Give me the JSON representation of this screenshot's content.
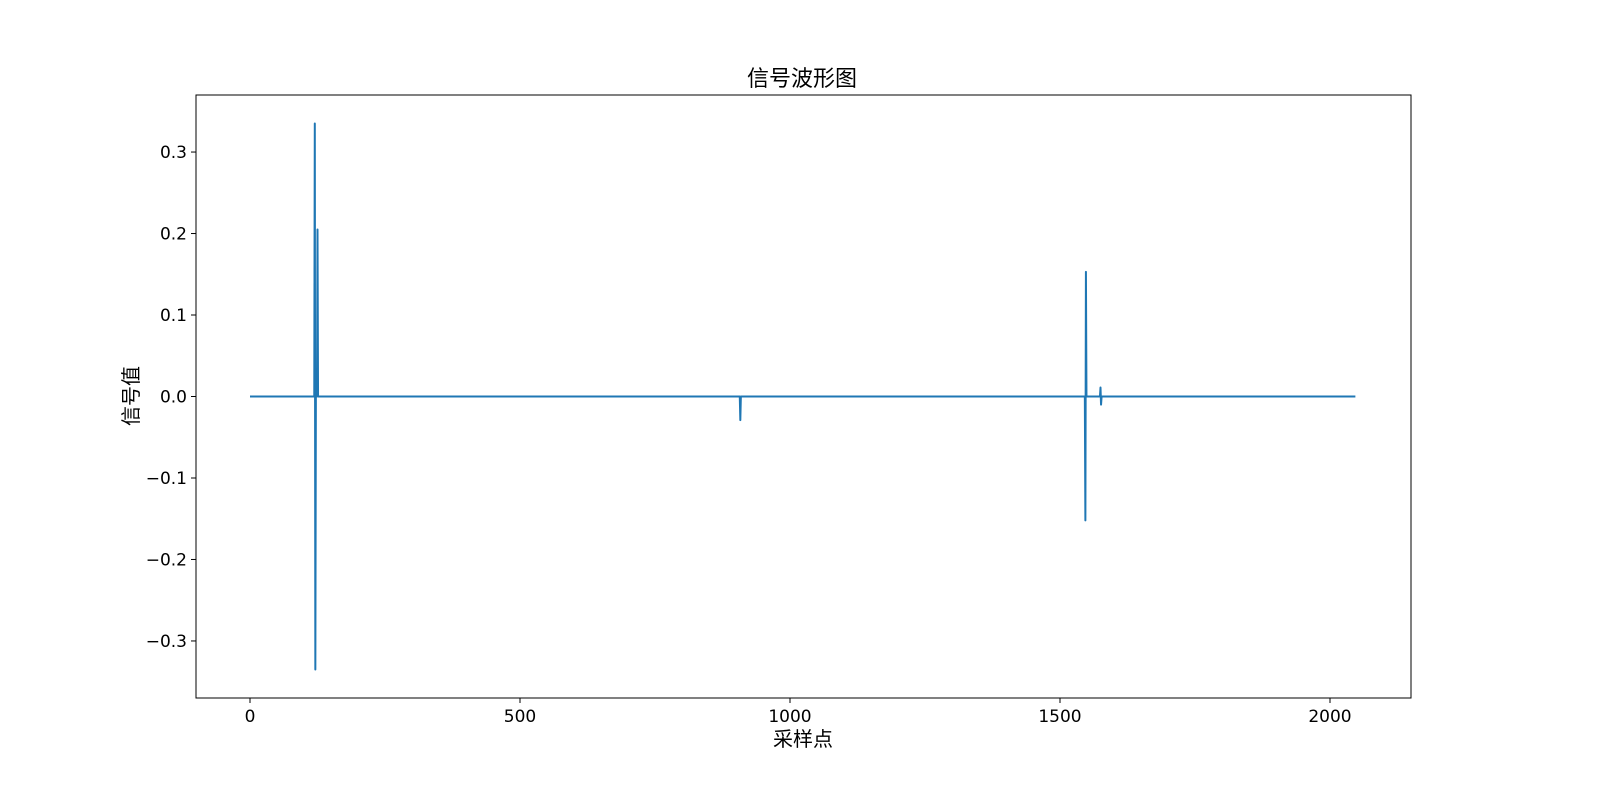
{
  "chart_data": {
    "type": "line",
    "title": "信号波形图",
    "xlabel": "采样点",
    "ylabel": "信号值",
    "xlim": [
      -100,
      2150
    ],
    "ylim": [
      -0.37,
      0.37
    ],
    "x_ticks": [
      0,
      500,
      1000,
      1500,
      2000
    ],
    "x_tick_labels": [
      "0",
      "500",
      "1000",
      "1500",
      "2000"
    ],
    "y_ticks": [
      -0.3,
      -0.2,
      -0.1,
      0.0,
      0.1,
      0.2,
      0.3
    ],
    "y_tick_labels": [
      "−0.3",
      "−0.2",
      "−0.1",
      "0.0",
      "0.1",
      "0.2",
      "0.3"
    ],
    "grid": false,
    "line_color": "#1f77b4",
    "series": [
      {
        "x": [
          0,
          119,
          120,
          121,
          122,
          123,
          124,
          125,
          126,
          127,
          907,
          908,
          909,
          910,
          1546,
          1547,
          1548,
          1549,
          1550,
          1574,
          1575,
          1576,
          1577,
          2047
        ],
        "y": [
          0.0,
          0.0,
          0.335,
          -0.335,
          0.0,
          0.0,
          0.0,
          0.205,
          0.0,
          0.0,
          0.0,
          -0.029,
          0.0,
          0.0,
          0.0,
          -0.152,
          0.153,
          0.0,
          0.0,
          0.0,
          0.011,
          -0.01,
          0.0,
          0.0
        ]
      }
    ]
  }
}
